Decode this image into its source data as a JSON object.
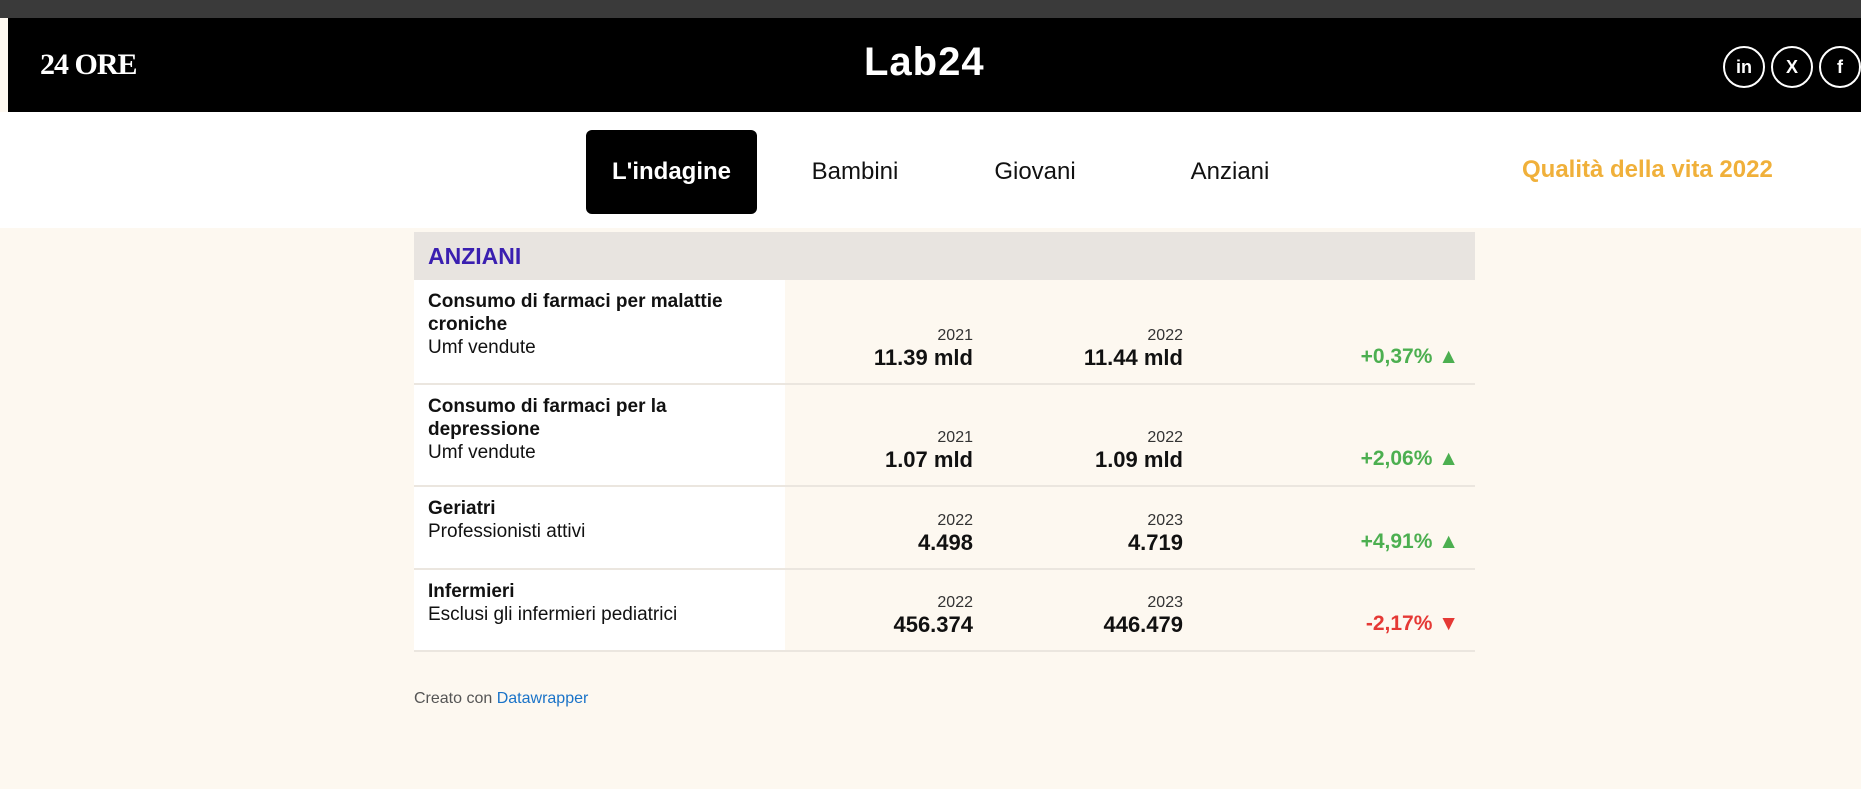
{
  "header": {
    "logo": "24 ORE",
    "brand": "Lab24",
    "social": [
      "in",
      "X",
      "f"
    ]
  },
  "nav": {
    "tabs": [
      "L'indagine",
      "Bambini",
      "Giovani",
      "Anziani"
    ],
    "active": 0,
    "right_link": "Qualità della vita 2022"
  },
  "table": {
    "title": "ANZIANI",
    "rows": [
      {
        "label": "Consumo di farmaci per malattie croniche",
        "sub": "Umf vendute",
        "year1": "2021",
        "value1": "11.39 mld",
        "year2": "2022",
        "value2": "11.44 mld",
        "change": "+0,37% ▲",
        "color": "#4caf50"
      },
      {
        "label": "Consumo di farmaci per la depressione",
        "sub": "Umf vendute",
        "year1": "2021",
        "value1": "1.07 mld",
        "year2": "2022",
        "value2": "1.09 mld",
        "change": "+2,06% ▲",
        "color": "#4caf50"
      },
      {
        "label": "Geriatri",
        "sub": "Professionisti attivi",
        "year1": "2022",
        "value1": "4.498",
        "year2": "2023",
        "value2": "4.719",
        "change": "+4,91% ▲",
        "color": "#4caf50"
      },
      {
        "label": "Infermieri",
        "sub": "Esclusi gli infermieri pediatrici",
        "year1": "2022",
        "value1": "456.374",
        "year2": "2023",
        "value2": "446.479",
        "change": "-2,17% ▼",
        "color": "#e53935"
      }
    ]
  },
  "footer": {
    "prefix": "Creato con",
    "link": "Datawrapper"
  }
}
